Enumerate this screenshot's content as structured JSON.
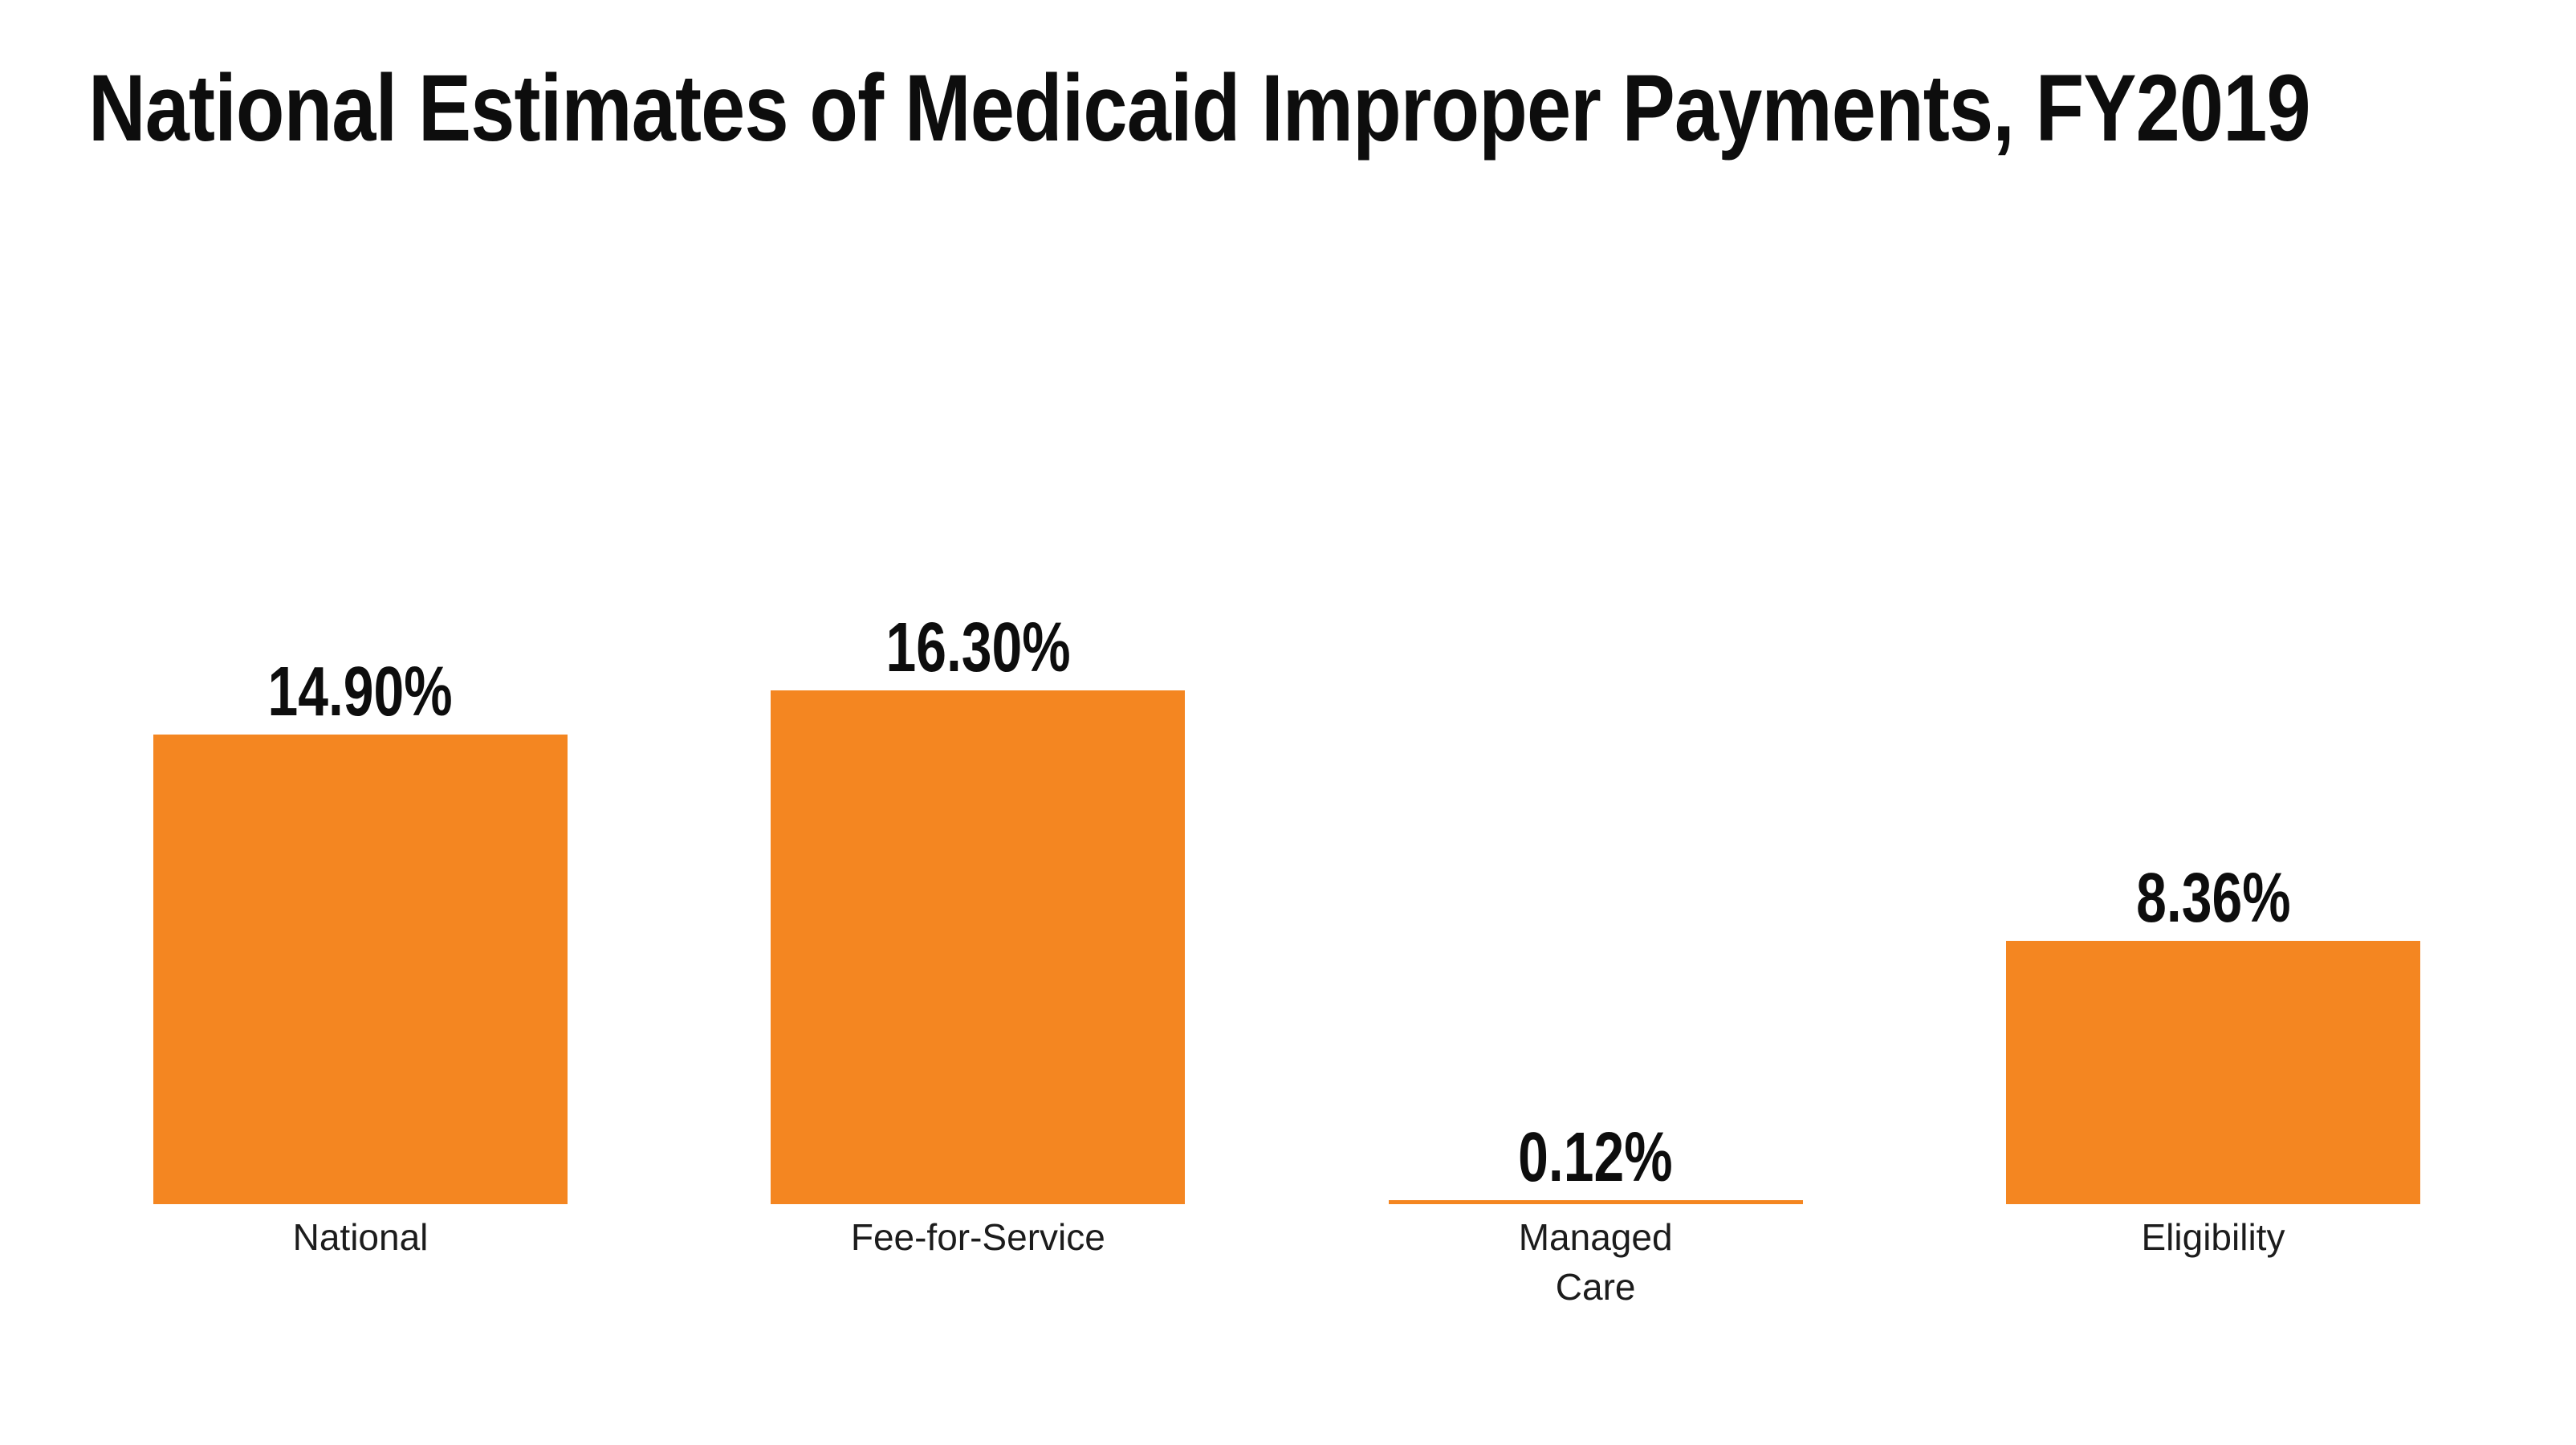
{
  "chart_data": {
    "type": "bar",
    "title": "National Estimates of Medicaid Improper Payments, FY2019",
    "categories": [
      "National",
      "Fee-for-Service",
      "Managed\nCare",
      "Eligibility"
    ],
    "values": [
      14.9,
      16.3,
      0.12,
      8.36
    ],
    "value_labels": [
      "14.90%",
      "16.30%",
      "0.12%",
      "8.36%"
    ],
    "ylabel": "",
    "xlabel": "",
    "ylim": [
      0,
      16.3
    ],
    "grid": false,
    "legend": false,
    "bar_color": "#f48621",
    "title_color": "#0d0d0d",
    "label_color": "#1c1c1c",
    "background_color": "#ffffff"
  }
}
